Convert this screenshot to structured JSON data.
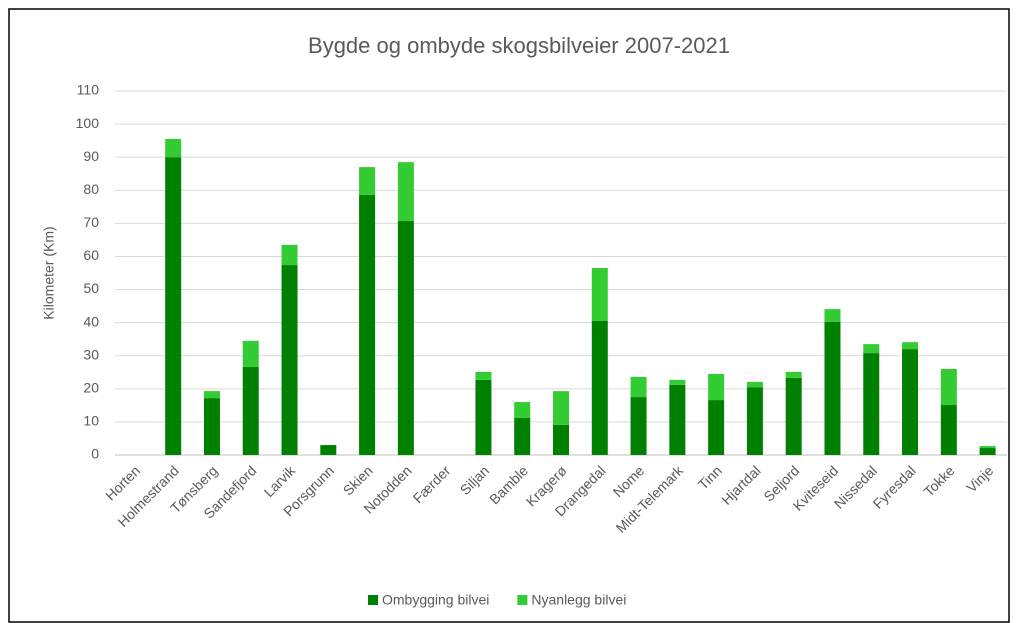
{
  "chart_data": {
    "type": "bar",
    "stacked": true,
    "title": "Bygde og ombyde skogsbilveier 2007-2021",
    "y_label": "Kilometer (Km)",
    "categories": [
      "Horten",
      "Holmestrand",
      "Tønsberg",
      "Sandefjord",
      "Larvik",
      "Porsgrunn",
      "Skien",
      "Notodden",
      "Færder",
      "Siljan",
      "Bamble",
      "Kragerø",
      "Drangedal",
      "Nome",
      "Midt-Telemark",
      "Tinn",
      "Hjartdal",
      "Seljord",
      "Kviteseid",
      "Nissedal",
      "Fyresdal",
      "Tokke",
      "Vinje"
    ],
    "series": [
      {
        "name": "Ombygging bilvei",
        "color": "#008000",
        "values": [
          0,
          90,
          17.2,
          26.6,
          57.4,
          3,
          78.6,
          70.7,
          0,
          22.7,
          11.2,
          9.1,
          40.5,
          17.5,
          21.2,
          16.6,
          20.5,
          23.3,
          40.2,
          30.8,
          32,
          15.1,
          2.1
        ]
      },
      {
        "name": "Nyanlegg bilvei",
        "color": "#33cc33",
        "values": [
          0,
          5.5,
          2.1,
          7.9,
          6.1,
          0,
          8.4,
          17.8,
          0,
          2.4,
          4.8,
          10.2,
          16,
          6.1,
          1.5,
          7.9,
          1.6,
          1.8,
          3.9,
          2.7,
          2.1,
          10.9,
          0.6
        ]
      }
    ],
    "ylim": [
      0,
      110
    ],
    "yticks": [
      0,
      10,
      20,
      30,
      40,
      50,
      60,
      70,
      80,
      90,
      100,
      110
    ],
    "grid": true,
    "legend": "bottom"
  }
}
